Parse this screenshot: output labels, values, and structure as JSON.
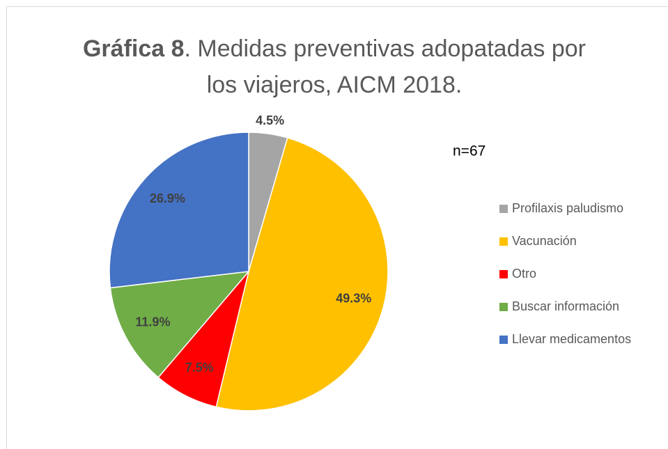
{
  "chart_data": {
    "type": "pie",
    "title": [
      "Gráfica 8",
      ". Medidas preventivas adopatadas por",
      "los viajeros, AICM 2018."
    ],
    "annotation": "n=67",
    "categories": [
      "Profilaxis paludismo",
      "Vacunación",
      "Otro",
      "Buscar información",
      "Llevar medicamentos"
    ],
    "values": [
      4.5,
      49.3,
      7.5,
      11.9,
      26.9
    ],
    "value_labels": [
      "4.5%",
      "49.3%",
      "7.5%",
      "11.9%",
      "26.9%"
    ],
    "colors": [
      "#a5a5a5",
      "#ffc000",
      "#ff0000",
      "#70ad47",
      "#4472c4"
    ],
    "legend": "right"
  }
}
